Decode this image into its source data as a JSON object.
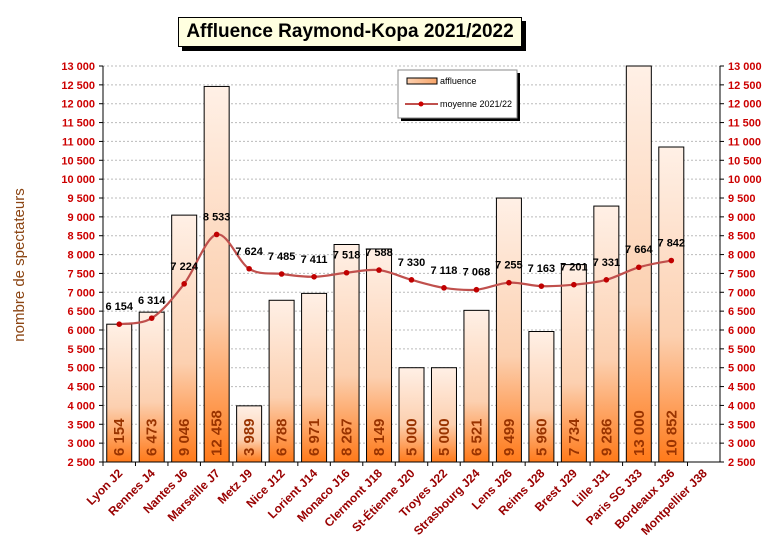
{
  "chart_data": {
    "type": "bar",
    "title": "Affluence Raymond-Kopa 2021/2022",
    "ylabel": "nombre de spectateurs",
    "xlabel": "",
    "ylim": [
      2500,
      13000
    ],
    "ystep": 500,
    "grid": true,
    "legend_position": "top-center",
    "categories": [
      "Lyon J2",
      "Rennes J4",
      "Nantes J6",
      "Marseille J7",
      "Metz J9",
      "Nice J12",
      "Lorient J14",
      "Monaco J16",
      "Clermont J18",
      "St-Étienne J20",
      "Troyes J22",
      "Strasbourg J24",
      "Lens J26",
      "Reims J28",
      "Brest J29",
      "Lille J31",
      "Paris SG J33",
      "Bordeaux J36",
      "Montpellier J38"
    ],
    "series": [
      {
        "name": "affluence",
        "type": "bar",
        "color": "#ff8c3a",
        "values": [
          6154,
          6473,
          9046,
          12458,
          3989,
          6788,
          6971,
          8267,
          8149,
          5000,
          5000,
          6521,
          9499,
          5960,
          7734,
          9286,
          13000,
          10852,
          null
        ]
      },
      {
        "name": "moyenne 2021/22",
        "type": "line",
        "color": "#c0392b",
        "values": [
          6154,
          6314,
          7224,
          8533,
          7624,
          7485,
          7411,
          7518,
          7588,
          7330,
          7118,
          7068,
          7255,
          7163,
          7201,
          7331,
          7664,
          7842,
          null
        ]
      }
    ]
  }
}
